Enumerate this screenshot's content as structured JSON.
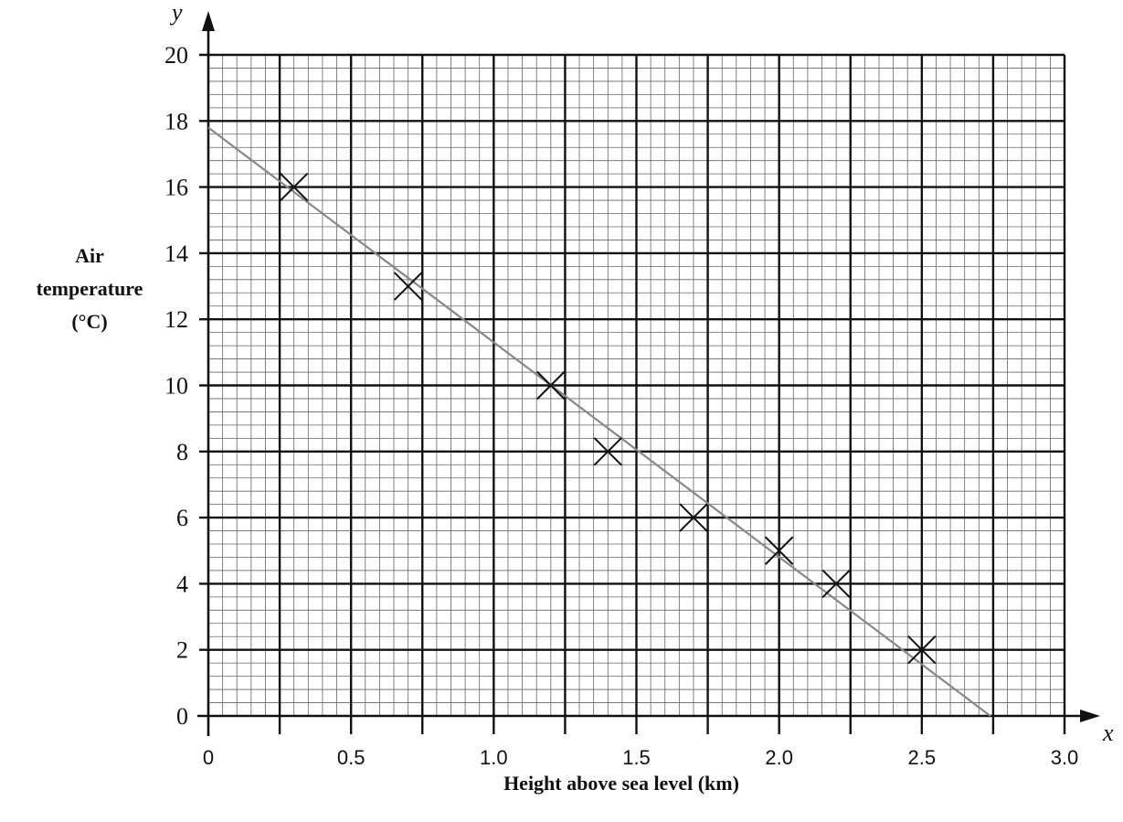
{
  "chart_data": {
    "type": "scatter",
    "xlabel": "Height above sea level (km)",
    "ylabel_lines": [
      "Air",
      "temperature",
      "(°C)"
    ],
    "x_axis_letter": "x",
    "y_axis_letter": "y",
    "xlim": [
      0,
      3.0
    ],
    "ylim": [
      0,
      20
    ],
    "x_ticks": [
      {
        "value": 0,
        "label": "0"
      },
      {
        "value": 0.5,
        "label": "0.5"
      },
      {
        "value": 1.0,
        "label": "1.0"
      },
      {
        "value": 1.5,
        "label": "1.5"
      },
      {
        "value": 2.0,
        "label": "2.0"
      },
      {
        "value": 2.5,
        "label": "2.5"
      },
      {
        "value": 3.0,
        "label": "3.0"
      }
    ],
    "y_ticks": [
      {
        "value": 0,
        "label": "0"
      },
      {
        "value": 2,
        "label": "2"
      },
      {
        "value": 4,
        "label": "4"
      },
      {
        "value": 6,
        "label": "6"
      },
      {
        "value": 8,
        "label": "8"
      },
      {
        "value": 10,
        "label": "10"
      },
      {
        "value": 12,
        "label": "12"
      },
      {
        "value": 14,
        "label": "14"
      },
      {
        "value": 16,
        "label": "16"
      },
      {
        "value": 18,
        "label": "18"
      },
      {
        "value": 20,
        "label": "20"
      }
    ],
    "points": [
      {
        "x": 0.3,
        "y": 16
      },
      {
        "x": 0.7,
        "y": 13
      },
      {
        "x": 1.2,
        "y": 10
      },
      {
        "x": 1.4,
        "y": 8
      },
      {
        "x": 1.7,
        "y": 6
      },
      {
        "x": 2.0,
        "y": 5
      },
      {
        "x": 2.2,
        "y": 4
      },
      {
        "x": 2.5,
        "y": 2
      }
    ],
    "marker": "x",
    "best_fit_line": {
      "x1": 0,
      "y1": 17.8,
      "x2": 2.74,
      "y2": 0
    },
    "grid": {
      "major_x_step": 0.25,
      "minor_x_step": 0.05,
      "major_y_step": 2,
      "minor_y_step": 0.4
    },
    "colors": {
      "ink": "#111111",
      "minor_grid": "#666666",
      "fit_line": "#888888"
    }
  }
}
